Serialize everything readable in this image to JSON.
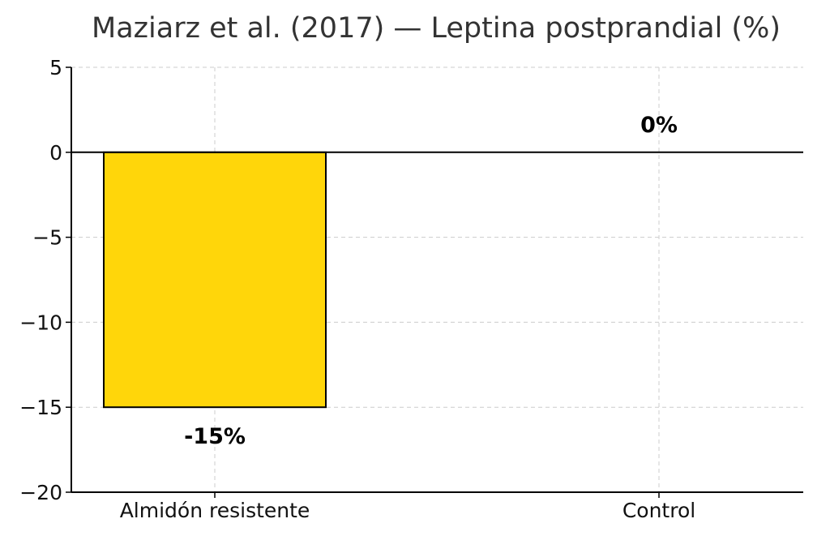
{
  "chart_data": {
    "type": "bar",
    "title": "Maziarz et al. (2017) — Leptina postprandial (%)",
    "xlabel": "",
    "ylabel": "",
    "categories": [
      "Almidón resistente",
      "Control"
    ],
    "values": [
      -15,
      0
    ],
    "value_labels": [
      "-15%",
      "0%"
    ],
    "ylim": [
      -20,
      5
    ],
    "yticks": [
      5,
      0,
      -5,
      -10,
      -15,
      -20
    ],
    "ytick_labels": [
      "5",
      "0",
      "−5",
      "−10",
      "−15",
      "−20"
    ],
    "grid": true,
    "legend": "none",
    "bar_colors": [
      "#FFD60A",
      "#FFD60A"
    ],
    "bar_edge_color": "#000000",
    "zero_line_color": "#000000"
  }
}
